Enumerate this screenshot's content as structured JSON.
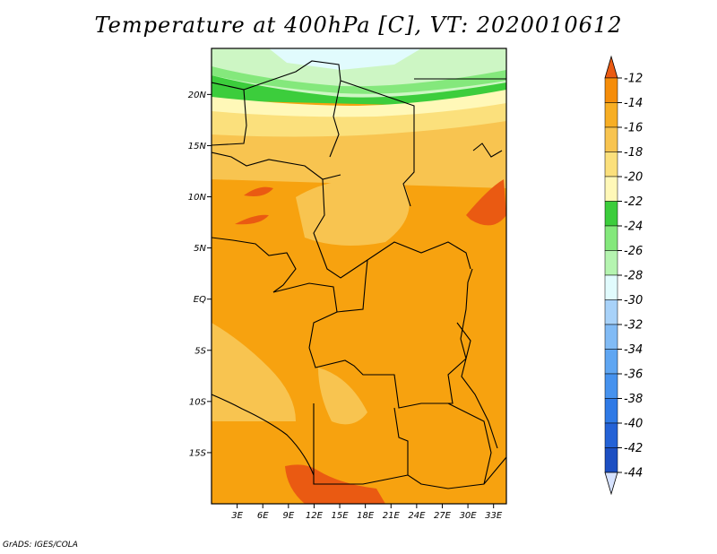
{
  "title": "Temperature at 400hPa [C], VT: 2020010612",
  "credit": "GrADS: IGES/COLA",
  "map": {
    "lon_range": [
      0,
      34.5
    ],
    "lat_range": [
      -20,
      24.5
    ],
    "lat_ticks": [
      {
        "value": 20,
        "label": "20N"
      },
      {
        "value": 15,
        "label": "15N"
      },
      {
        "value": 10,
        "label": "10N"
      },
      {
        "value": 5,
        "label": "5N"
      },
      {
        "value": 0,
        "label": "EQ"
      },
      {
        "value": -5,
        "label": "5S"
      },
      {
        "value": -10,
        "label": "10S"
      },
      {
        "value": -15,
        "label": "15S"
      }
    ],
    "lon_ticks": [
      {
        "value": 3,
        "label": "3E"
      },
      {
        "value": 6,
        "label": "6E"
      },
      {
        "value": 9,
        "label": "9E"
      },
      {
        "value": 12,
        "label": "12E"
      },
      {
        "value": 15,
        "label": "15E"
      },
      {
        "value": 18,
        "label": "18E"
      },
      {
        "value": 21,
        "label": "21E"
      },
      {
        "value": 24,
        "label": "24E"
      },
      {
        "value": 27,
        "label": "27E"
      },
      {
        "value": 30,
        "label": "30E"
      },
      {
        "value": 33,
        "label": "33E"
      }
    ]
  },
  "colorbar": {
    "labels": [
      "-12",
      "-14",
      "-16",
      "-18",
      "-20",
      "-22",
      "-24",
      "-26",
      "-28",
      "-30",
      "-32",
      "-34",
      "-36",
      "-38",
      "-40",
      "-42",
      "-44"
    ],
    "colors": [
      "#d6e2ff",
      "#0f1d78",
      "#1c4fc2",
      "#2462d6",
      "#2f7ae6",
      "#4692ee",
      "#5fa6f2",
      "#81bbf5",
      "#a8d2f9",
      "#e1fbfd",
      "#b5f4b0",
      "#84e87c",
      "#3ccd3c",
      "#fff8b8",
      "#fbe07c",
      "#f8c450",
      "#f7ae24",
      "#f58d0a",
      "#ea5a12"
    ]
  }
}
